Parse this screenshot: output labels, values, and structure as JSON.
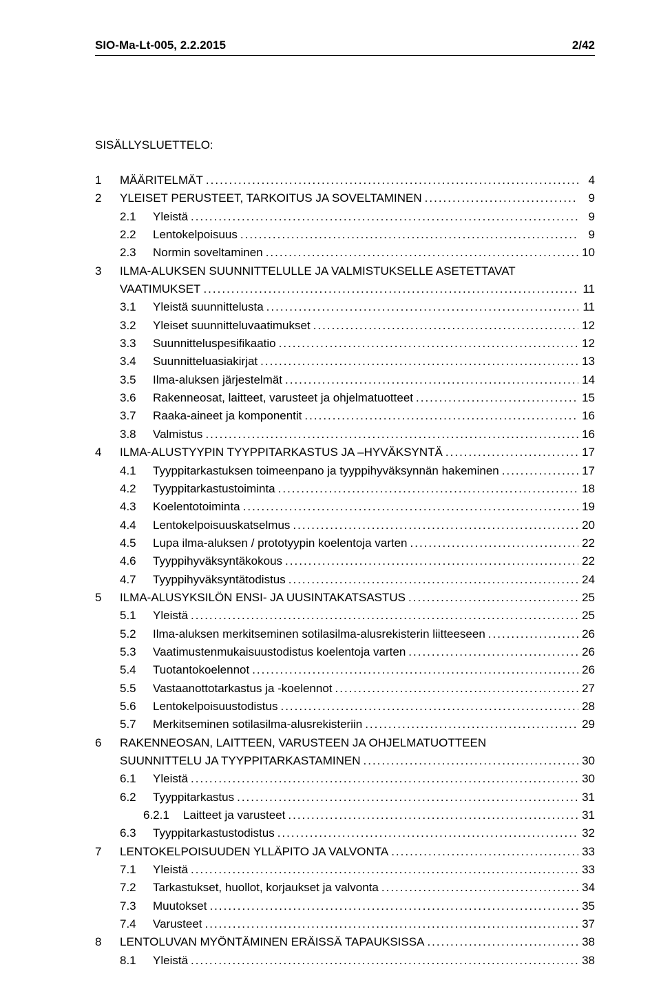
{
  "header": {
    "doc_id": "SIO-Ma-Lt-005",
    "doc_date": "2.2.2015",
    "page_indicator": "2/42"
  },
  "toc_title": "SISÄLLYSLUETTELO:",
  "toc": [
    {
      "indent": 0,
      "num": "1",
      "label": "MÄÄRITELMÄT",
      "page": "4"
    },
    {
      "indent": 0,
      "num": "2",
      "label": "YLEISET PERUSTEET, TARKOITUS JA SOVELTAMINEN",
      "page": "9"
    },
    {
      "indent": 1,
      "num": "2.1",
      "label": "Yleistä",
      "page": "9"
    },
    {
      "indent": 1,
      "num": "2.2",
      "label": "Lentokelpoisuus",
      "page": "9"
    },
    {
      "indent": 1,
      "num": "2.3",
      "label": "Normin soveltaminen",
      "page": "10"
    },
    {
      "indent": 0,
      "num": "3",
      "label": "ILMA-ALUKSEN SUUNNITTELULLE JA VALMISTUKSELLE ASETETTAVAT",
      "wrap": "VAATIMUKSET",
      "page": "11"
    },
    {
      "indent": 1,
      "num": "3.1",
      "label": "Yleistä suunnittelusta",
      "page": "11"
    },
    {
      "indent": 1,
      "num": "3.2",
      "label": "Yleiset suunnitteluvaatimukset",
      "page": "12"
    },
    {
      "indent": 1,
      "num": "3.3",
      "label": "Suunnitteluspesifikaatio",
      "page": "12"
    },
    {
      "indent": 1,
      "num": "3.4",
      "label": "Suunnitteluasiakirjat",
      "page": "13"
    },
    {
      "indent": 1,
      "num": "3.5",
      "label": "Ilma-aluksen järjestelmät",
      "page": "14"
    },
    {
      "indent": 1,
      "num": "3.6",
      "label": "Rakenneosat, laitteet, varusteet ja ohjelmatuotteet",
      "page": "15"
    },
    {
      "indent": 1,
      "num": "3.7",
      "label": "Raaka-aineet ja komponentit",
      "page": "16"
    },
    {
      "indent": 1,
      "num": "3.8",
      "label": "Valmistus",
      "page": "16"
    },
    {
      "indent": 0,
      "num": "4",
      "label": "ILMA-ALUSTYYPIN TYYPPITARKASTUS JA –HYVÄKSYNTÄ",
      "page": "17"
    },
    {
      "indent": 1,
      "num": "4.1",
      "label": "Tyyppitarkastuksen toimeenpano ja tyyppihyväksynnän hakeminen",
      "page": "17"
    },
    {
      "indent": 1,
      "num": "4.2",
      "label": "Tyyppitarkastustoiminta",
      "page": "18"
    },
    {
      "indent": 1,
      "num": "4.3",
      "label": "Koelentotoiminta",
      "page": "19"
    },
    {
      "indent": 1,
      "num": "4.4",
      "label": "Lentokelpoisuuskatselmus",
      "page": "20"
    },
    {
      "indent": 1,
      "num": "4.5",
      "label": "Lupa ilma-aluksen / prototyypin koelentoja varten",
      "page": "22"
    },
    {
      "indent": 1,
      "num": "4.6",
      "label": "Tyyppihyväksyntäkokous",
      "page": "22"
    },
    {
      "indent": 1,
      "num": "4.7",
      "label": "Tyyppihyväksyntätodistus",
      "page": "24"
    },
    {
      "indent": 0,
      "num": "5",
      "label": "ILMA-ALUSYKSILÖN ENSI- JA UUSINTAKATSASTUS",
      "page": "25"
    },
    {
      "indent": 1,
      "num": "5.1",
      "label": "Yleistä",
      "page": "25"
    },
    {
      "indent": 1,
      "num": "5.2",
      "label": "Ilma-aluksen merkitseminen sotilasilma-alusrekisterin liitteeseen",
      "page": "26"
    },
    {
      "indent": 1,
      "num": "5.3",
      "label": "Vaatimustenmukaisuustodistus koelentoja varten",
      "page": "26"
    },
    {
      "indent": 1,
      "num": "5.4",
      "label": "Tuotantokoelennot",
      "page": "26"
    },
    {
      "indent": 1,
      "num": "5.5",
      "label": "Vastaanottotarkastus ja -koelennot",
      "page": "27"
    },
    {
      "indent": 1,
      "num": "5.6",
      "label": "Lentokelpoisuustodistus",
      "page": "28"
    },
    {
      "indent": 1,
      "num": "5.7",
      "label": "Merkitseminen sotilasilma-alusrekisteriin",
      "page": "29"
    },
    {
      "indent": 0,
      "num": "6",
      "label": "RAKENNEOSAN, LAITTEEN, VARUSTEEN JA OHJELMATUOTTEEN",
      "wrap": "SUUNNITTELU JA TYYPPITARKASTAMINEN",
      "page": "30"
    },
    {
      "indent": 1,
      "num": "6.1",
      "label": "Yleistä",
      "page": "30"
    },
    {
      "indent": 1,
      "num": "6.2",
      "label": "Tyyppitarkastus",
      "page": "31"
    },
    {
      "indent": 2,
      "num": "6.2.1",
      "label": "Laitteet ja varusteet",
      "page": "31"
    },
    {
      "indent": 1,
      "num": "6.3",
      "label": "Tyyppitarkastustodistus",
      "page": "32"
    },
    {
      "indent": 0,
      "num": "7",
      "label": "LENTOKELPOISUUDEN YLLÄPITO JA VALVONTA",
      "page": "33"
    },
    {
      "indent": 1,
      "num": "7.1",
      "label": "Yleistä",
      "page": "33"
    },
    {
      "indent": 1,
      "num": "7.2",
      "label": "Tarkastukset, huollot, korjaukset ja valvonta",
      "page": "34"
    },
    {
      "indent": 1,
      "num": "7.3",
      "label": "Muutokset",
      "page": "35"
    },
    {
      "indent": 1,
      "num": "7.4",
      "label": "Varusteet",
      "page": "37"
    },
    {
      "indent": 0,
      "num": "8",
      "label": "LENTOLUVAN MYÖNTÄMINEN ERÄISSÄ TAPAUKSISSA",
      "page": "38"
    },
    {
      "indent": 1,
      "num": "8.1",
      "label": "Yleistä",
      "page": "38"
    }
  ]
}
